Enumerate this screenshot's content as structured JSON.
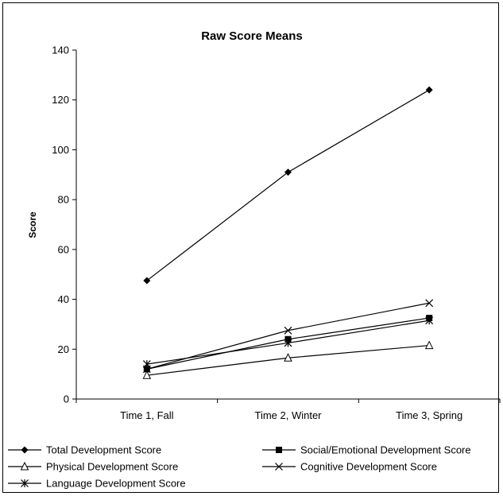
{
  "chart_data": {
    "type": "line",
    "title": "Raw Score Means",
    "xlabel": "",
    "ylabel": "Score",
    "categories": [
      "Time 1, Fall",
      "Time 2, Winter",
      "Time 3, Spring"
    ],
    "ylim": [
      0,
      140
    ],
    "yticks": [
      "0",
      "20",
      "40",
      "60",
      "80",
      "100",
      "120",
      "140"
    ],
    "grid": false,
    "legend_position": "bottom",
    "series": [
      {
        "name": "Total Development Score",
        "marker": "diamond",
        "values": [
          47.5,
          91,
          124
        ]
      },
      {
        "name": "Social/Emotional Development Score",
        "marker": "square",
        "values": [
          12,
          24,
          32.5
        ]
      },
      {
        "name": "Physical Development Score",
        "marker": "triangle-open",
        "values": [
          9.5,
          16.5,
          21.5
        ]
      },
      {
        "name": "Cognitive Development Score",
        "marker": "x",
        "values": [
          12,
          27.5,
          38.5
        ]
      },
      {
        "name": "Language Development Score",
        "marker": "asterisk",
        "values": [
          14,
          22.5,
          31.5
        ]
      }
    ]
  }
}
